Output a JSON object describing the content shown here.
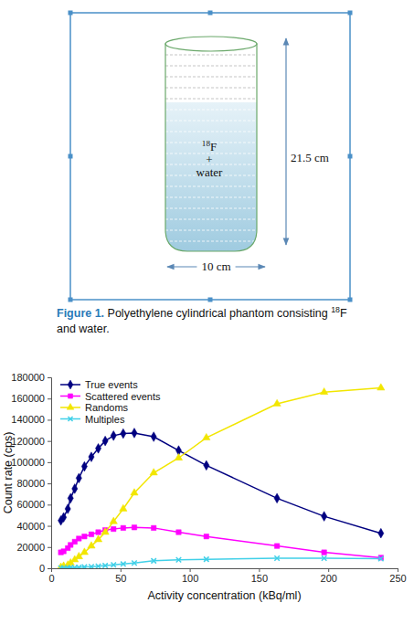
{
  "figure": {
    "diagram": {
      "label_lines": [
        [
          {
            "text": "18",
            "sup": true
          },
          {
            "text": "F"
          }
        ],
        [
          {
            "text": "+"
          }
        ],
        [
          {
            "text": "water"
          }
        ]
      ],
      "height_label": "21.5 cm",
      "width_label": "10 cm"
    },
    "caption": [
      [
        {
          "text": "Figure 1.",
          "label": true
        },
        {
          "text": " Polyethylene cylindrical phantom consisting "
        },
        {
          "text": "18",
          "sup": true
        },
        {
          "text": "F"
        }
      ],
      [
        {
          "text": "and water."
        }
      ]
    ]
  },
  "chart_data": {
    "type": "line",
    "x_label": "Activity concentration (kBq/ml)",
    "y_label": "Count rate (cps)",
    "x": [
      7,
      9,
      12,
      14,
      17,
      20,
      24,
      29,
      34,
      39,
      45,
      52,
      60,
      74,
      92,
      112,
      163,
      197,
      238
    ],
    "xlim": [
      0,
      250
    ],
    "xticks": [
      0,
      50,
      100,
      150,
      200,
      250
    ],
    "ylim": [
      0,
      180000
    ],
    "yticks": [
      0,
      20000,
      40000,
      60000,
      80000,
      100000,
      120000,
      140000,
      160000,
      180000
    ],
    "grid": false,
    "legend": "upper left",
    "series": [
      {
        "name": "True events",
        "color": "#000080",
        "marker": "diamond",
        "values": [
          45000,
          48000,
          56000,
          66000,
          75000,
          85000,
          96000,
          105000,
          113000,
          120000,
          125000,
          127000,
          127500,
          124000,
          111000,
          97000,
          66000,
          49000,
          33000
        ]
      },
      {
        "name": "Scattered events",
        "color": "#ff00ff",
        "marker": "square",
        "values": [
          15000,
          16000,
          19000,
          22000,
          25000,
          28000,
          30000,
          32000,
          34000,
          36000,
          37000,
          38000,
          38500,
          38000,
          34000,
          30000,
          21000,
          15000,
          10000
        ]
      },
      {
        "name": "Randoms",
        "color": "#f2e600",
        "marker": "triangle",
        "values": [
          1000,
          2000,
          3000,
          5000,
          8000,
          11000,
          15000,
          21000,
          27000,
          34000,
          44000,
          56000,
          71000,
          90000,
          104000,
          123000,
          155000,
          166000,
          170000
        ]
      },
      {
        "name": "Multiples",
        "color": "#40d0e8",
        "marker": "x",
        "values": [
          200,
          300,
          400,
          500,
          700,
          900,
          1200,
          1500,
          2000,
          2500,
          3200,
          4000,
          5000,
          7000,
          8000,
          8500,
          9500,
          9500,
          9000
        ]
      }
    ]
  }
}
